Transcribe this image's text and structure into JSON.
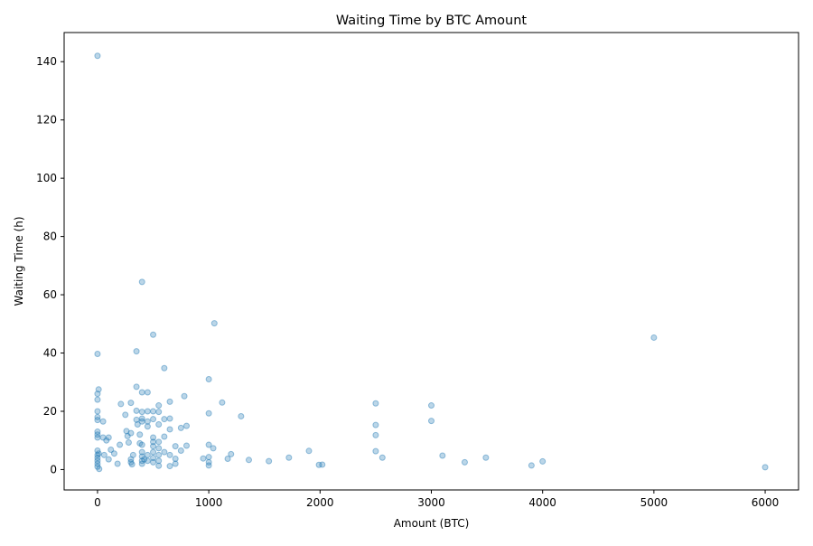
{
  "chart_data": {
    "type": "scatter",
    "title": "Waiting Time by BTC Amount",
    "xlabel": "Amount (BTC)",
    "ylabel": "Waiting Time (h)",
    "xlim": [
      -300,
      6300
    ],
    "ylim": [
      -7,
      150
    ],
    "xticks": [
      0,
      1000,
      2000,
      3000,
      4000,
      5000,
      6000
    ],
    "yticks": [
      0,
      20,
      40,
      60,
      80,
      100,
      120,
      140
    ],
    "grid": false,
    "legend": "none",
    "point_color": "#1f77b4",
    "point_alpha": 0.3,
    "points": [
      [
        0,
        142
      ],
      [
        0,
        39.7
      ],
      [
        0,
        26
      ],
      [
        0,
        24
      ],
      [
        0,
        20
      ],
      [
        0,
        18
      ],
      [
        0,
        17
      ],
      [
        0,
        13
      ],
      [
        0,
        12
      ],
      [
        0,
        11
      ],
      [
        0,
        6.5
      ],
      [
        0,
        5
      ],
      [
        0,
        4
      ],
      [
        0,
        3
      ],
      [
        0,
        2
      ],
      [
        0,
        1
      ],
      [
        10,
        27.5
      ],
      [
        10,
        5.5
      ],
      [
        15,
        0.2
      ],
      [
        50,
        16.5
      ],
      [
        50,
        11
      ],
      [
        60,
        5
      ],
      [
        80,
        10
      ],
      [
        100,
        11
      ],
      [
        100,
        3.5
      ],
      [
        120,
        6.8
      ],
      [
        150,
        5.5
      ],
      [
        180,
        2
      ],
      [
        200,
        8.5
      ],
      [
        210,
        22.5
      ],
      [
        250,
        18.8
      ],
      [
        260,
        13.2
      ],
      [
        270,
        11.5
      ],
      [
        280,
        9.3
      ],
      [
        300,
        22.9
      ],
      [
        300,
        12.5
      ],
      [
        300,
        3.5
      ],
      [
        300,
        2.5
      ],
      [
        310,
        1.8
      ],
      [
        320,
        5
      ],
      [
        350,
        40.6
      ],
      [
        350,
        28.4
      ],
      [
        350,
        20.2
      ],
      [
        350,
        17.1
      ],
      [
        360,
        15.5
      ],
      [
        380,
        12
      ],
      [
        380,
        9
      ],
      [
        400,
        64.4
      ],
      [
        400,
        26.5
      ],
      [
        400,
        19.8
      ],
      [
        400,
        17.5
      ],
      [
        400,
        16.5
      ],
      [
        400,
        8.5
      ],
      [
        400,
        6
      ],
      [
        400,
        4.5
      ],
      [
        400,
        3
      ],
      [
        400,
        2
      ],
      [
        420,
        3.5
      ],
      [
        450,
        26.5
      ],
      [
        450,
        20
      ],
      [
        450,
        16.5
      ],
      [
        450,
        14.8
      ],
      [
        450,
        5
      ],
      [
        450,
        3
      ],
      [
        500,
        46.3
      ],
      [
        500,
        20
      ],
      [
        500,
        17.3
      ],
      [
        500,
        11
      ],
      [
        500,
        9.5
      ],
      [
        500,
        8
      ],
      [
        500,
        6
      ],
      [
        500,
        4
      ],
      [
        500,
        2.5
      ],
      [
        550,
        22
      ],
      [
        550,
        19.8
      ],
      [
        550,
        15.5
      ],
      [
        550,
        9.5
      ],
      [
        550,
        7.3
      ],
      [
        550,
        5
      ],
      [
        550,
        3
      ],
      [
        550,
        1.3
      ],
      [
        600,
        34.8
      ],
      [
        600,
        17.3
      ],
      [
        600,
        11.3
      ],
      [
        600,
        6
      ],
      [
        650,
        23.3
      ],
      [
        650,
        17.5
      ],
      [
        650,
        13.8
      ],
      [
        650,
        5
      ],
      [
        650,
        1.2
      ],
      [
        700,
        8
      ],
      [
        700,
        3.7
      ],
      [
        700,
        2
      ],
      [
        750,
        14.3
      ],
      [
        750,
        6.5
      ],
      [
        780,
        25.2
      ],
      [
        800,
        15
      ],
      [
        800,
        8.2
      ],
      [
        950,
        3.8
      ],
      [
        1000,
        31
      ],
      [
        1000,
        19.3
      ],
      [
        1000,
        8.5
      ],
      [
        1000,
        4.3
      ],
      [
        1000,
        2.5
      ],
      [
        1000,
        1.4
      ],
      [
        1040,
        7.3
      ],
      [
        1050,
        50.2
      ],
      [
        1120,
        23
      ],
      [
        1170,
        3.7
      ],
      [
        1200,
        5.3
      ],
      [
        1290,
        18.3
      ],
      [
        1360,
        3.3
      ],
      [
        1540,
        2.9
      ],
      [
        1720,
        4.1
      ],
      [
        1900,
        6.4
      ],
      [
        1990,
        1.6
      ],
      [
        2020,
        1.7
      ],
      [
        2500,
        22.7
      ],
      [
        2500,
        15.3
      ],
      [
        2500,
        11.8
      ],
      [
        2500,
        6.3
      ],
      [
        2560,
        4.1
      ],
      [
        3000,
        22
      ],
      [
        3000,
        16.7
      ],
      [
        3100,
        4.8
      ],
      [
        3300,
        2.5
      ],
      [
        3490,
        4.1
      ],
      [
        3900,
        1.4
      ],
      [
        4000,
        2.8
      ],
      [
        5000,
        45.3
      ],
      [
        6000,
        0.8
      ]
    ]
  }
}
